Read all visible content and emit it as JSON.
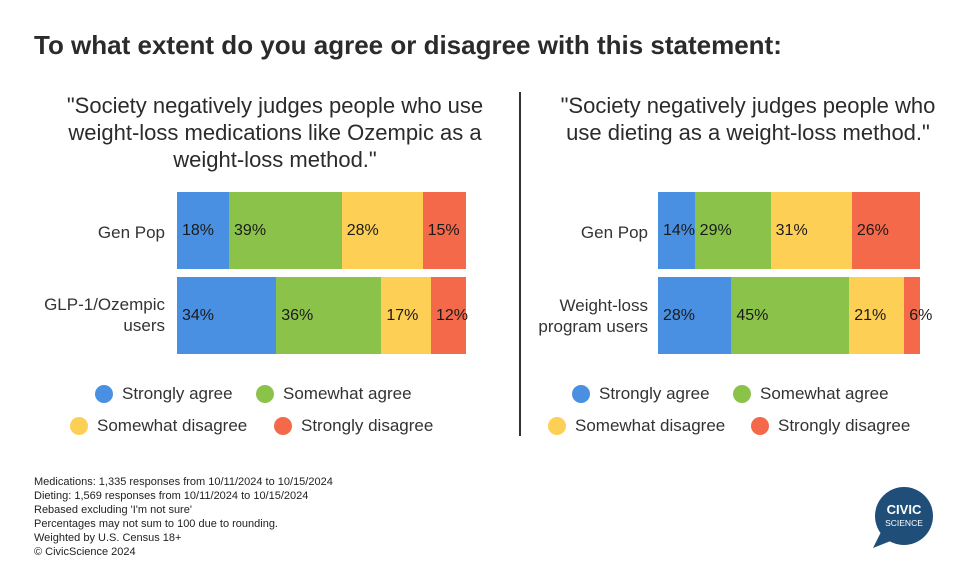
{
  "title": "To what extent do you agree or disagree with this statement:",
  "colors": {
    "strongly_agree": "#4a90e2",
    "somewhat_agree": "#8bc34a",
    "somewhat_disagree": "#fdd055",
    "strongly_disagree": "#f4694a"
  },
  "chart_data": [
    {
      "type": "bar",
      "stacked": true,
      "orientation": "horizontal",
      "title": "\"Society negatively judges people who use weight-loss medications like Ozempic as a weight-loss method.\"",
      "categories": [
        "Gen Pop",
        "GLP-1/Ozempic users"
      ],
      "series": [
        {
          "name": "Strongly agree",
          "values": [
            18,
            34
          ]
        },
        {
          "name": "Somewhat agree",
          "values": [
            39,
            36
          ]
        },
        {
          "name": "Somewhat disagree",
          "values": [
            28,
            17
          ]
        },
        {
          "name": "Strongly disagree",
          "values": [
            15,
            12
          ]
        }
      ],
      "data_labels": [
        [
          "18%",
          "39%",
          "28%",
          "15%"
        ],
        [
          "34%",
          "36%",
          "17%",
          "12%"
        ]
      ],
      "legend": "bottom"
    },
    {
      "type": "bar",
      "stacked": true,
      "orientation": "horizontal",
      "title": "\"Society negatively judges people who use dieting as a weight-loss method.\"",
      "categories": [
        "Gen Pop",
        "Weight-loss program users"
      ],
      "series": [
        {
          "name": "Strongly agree",
          "values": [
            14,
            28
          ]
        },
        {
          "name": "Somewhat agree",
          "values": [
            29,
            45
          ]
        },
        {
          "name": "Somewhat disagree",
          "values": [
            31,
            21
          ]
        },
        {
          "name": "Strongly disagree",
          "values": [
            26,
            6
          ]
        }
      ],
      "data_labels": [
        [
          "14%",
          "29%",
          "31%",
          "26%"
        ],
        [
          "28%",
          "45%",
          "21%",
          "6%"
        ]
      ],
      "legend": "bottom"
    }
  ],
  "notes": [
    "Medications: 1,335 responses from 10/11/2024 to 10/15/2024",
    "Dieting: 1,569 responses from 10/11/2024 to 10/15/2024",
    "Rebased excluding 'I'm not sure'",
    "Percentages may not sum to 100 due to rounding.",
    "Weighted by U.S. Census 18+",
    "© CivicScience 2024"
  ],
  "logo": {
    "line1": "CIVIC",
    "line2": "SCIENCE"
  }
}
